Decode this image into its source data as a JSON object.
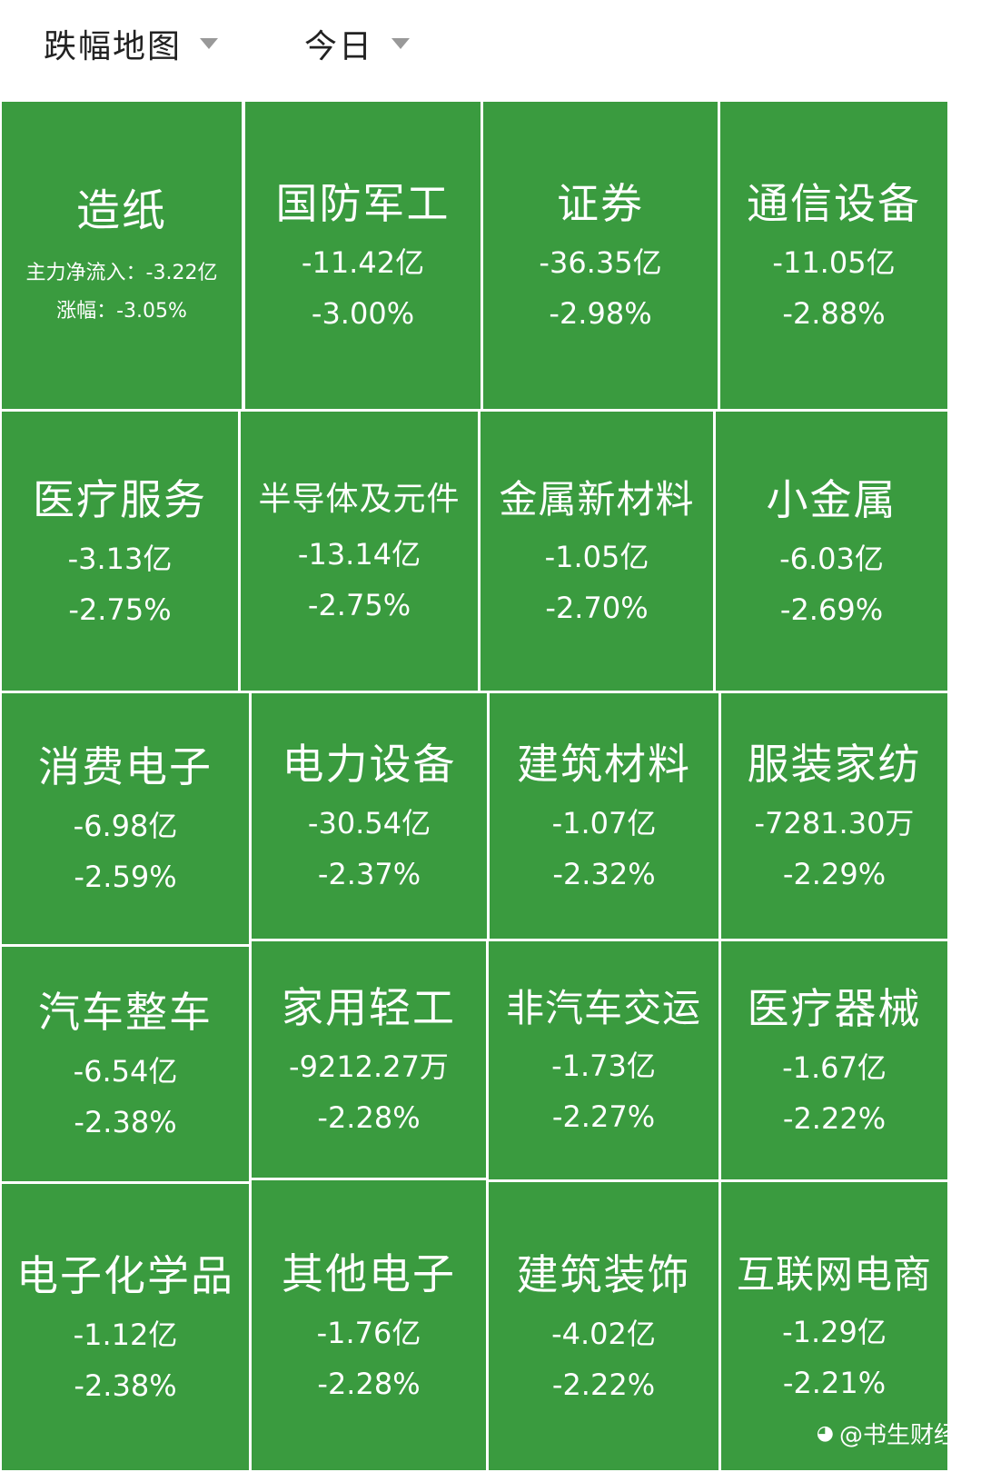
{
  "header": {
    "type_selector": "跌幅地图",
    "period_selector": "今日"
  },
  "tile_color": "#3a9b3f",
  "selected_tile": {
    "name": "造纸",
    "flow_line": "主力净流入：-3.22亿",
    "change_line": "涨幅：-3.05%"
  },
  "sectors": [
    {
      "name": "国防军工",
      "net_inflow": "-11.42亿",
      "change": "-3.00%"
    },
    {
      "name": "证券",
      "net_inflow": "-36.35亿",
      "change": "-2.98%"
    },
    {
      "name": "通信设备",
      "net_inflow": "-11.05亿",
      "change": "-2.88%"
    },
    {
      "name": "医疗服务",
      "net_inflow": "-3.13亿",
      "change": "-2.75%"
    },
    {
      "name": "半导体及元件",
      "net_inflow": "-13.14亿",
      "change": "-2.75%"
    },
    {
      "name": "金属新材料",
      "net_inflow": "-1.05亿",
      "change": "-2.70%"
    },
    {
      "name": "小金属",
      "net_inflow": "-6.03亿",
      "change": "-2.69%"
    },
    {
      "name": "消费电子",
      "net_inflow": "-6.98亿",
      "change": "-2.59%"
    },
    {
      "name": "电力设备",
      "net_inflow": "-30.54亿",
      "change": "-2.37%"
    },
    {
      "name": "建筑材料",
      "net_inflow": "-1.07亿",
      "change": "-2.32%"
    },
    {
      "name": "服装家纺",
      "net_inflow": "-7281.30万",
      "change": "-2.29%"
    },
    {
      "name": "汽车整车",
      "net_inflow": "-6.54亿",
      "change": "-2.38%"
    },
    {
      "name": "家用轻工",
      "net_inflow": "-9212.27万",
      "change": "-2.28%"
    },
    {
      "name": "非汽车交运",
      "net_inflow": "-1.73亿",
      "change": "-2.27%"
    },
    {
      "name": "医疗器械",
      "net_inflow": "-1.67亿",
      "change": "-2.22%"
    },
    {
      "name": "电子化学品",
      "net_inflow": "-1.12亿",
      "change": "-2.38%"
    },
    {
      "name": "其他电子",
      "net_inflow": "-1.76亿",
      "change": "-2.28%"
    },
    {
      "name": "建筑装饰",
      "net_inflow": "-4.02亿",
      "change": "-2.22%"
    },
    {
      "name": "互联网电商",
      "net_inflow": "-1.29亿",
      "change": "-2.21%"
    }
  ],
  "watermark": {
    "logo": "weibo-logo-icon",
    "text": "@书生财经"
  }
}
